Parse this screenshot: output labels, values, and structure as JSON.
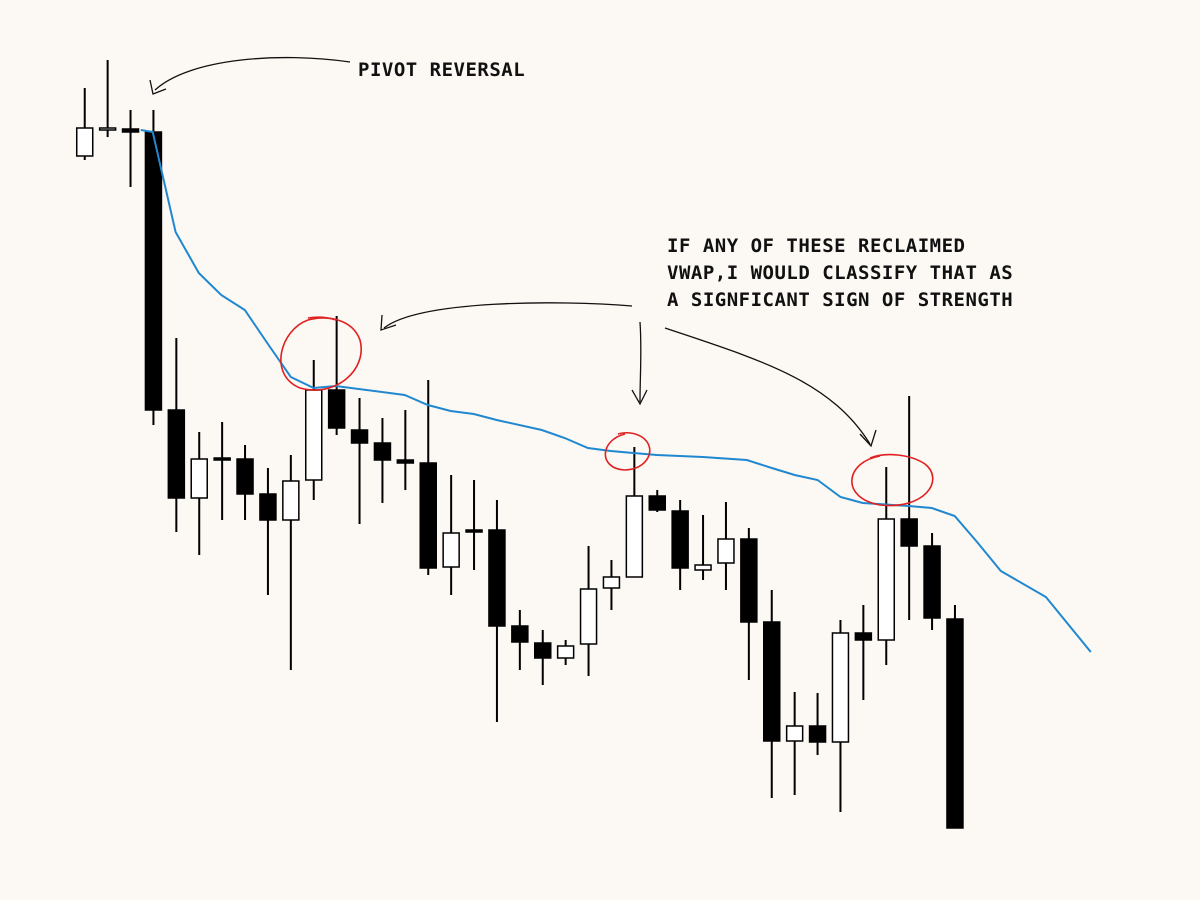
{
  "chart_data": {
    "type": "candlestick",
    "annotations": [
      "PIVOT REVERSAL",
      [
        "IF ANY OF THESE RECLAIMED",
        "VWAP,I WOULD CLASSIFY THAT AS",
        "A SIGNFICANT SIGN OF STRENGTH"
      ]
    ],
    "x": [
      0,
      1,
      2,
      3,
      4,
      5,
      6,
      7,
      8,
      9,
      10,
      11,
      12,
      13,
      14,
      15,
      16,
      17,
      18,
      19,
      20,
      21,
      22,
      23,
      24,
      25,
      26,
      27,
      28,
      29,
      30,
      31,
      32,
      33,
      34,
      35,
      36,
      37,
      38
    ],
    "open": [
      744,
      771,
      771,
      768,
      490,
      402,
      442,
      441,
      406,
      380,
      420,
      510,
      470,
      457,
      440,
      437,
      333,
      370,
      370,
      274,
      257,
      242,
      256,
      312,
      323,
      404,
      389,
      330,
      337,
      361,
      278,
      159,
      174,
      158,
      267,
      260,
      381,
      354,
      281
    ],
    "high": [
      812,
      840,
      790,
      790,
      562,
      468,
      478,
      455,
      432,
      445,
      540,
      584,
      502,
      482,
      490,
      520,
      425,
      420,
      400,
      290,
      270,
      260,
      354,
      340,
      453,
      410,
      400,
      385,
      398,
      372,
      310,
      208,
      207,
      280,
      295,
      433,
      504,
      367,
      295
    ],
    "low": [
      740,
      763,
      713,
      475,
      368,
      345,
      380,
      380,
      305,
      230,
      400,
      465,
      376,
      397,
      410,
      325,
      305,
      330,
      178,
      230,
      215,
      235,
      224,
      290,
      323,
      388,
      310,
      320,
      310,
      220,
      102,
      105,
      145,
      88,
      200,
      235,
      280,
      270,
      72
    ],
    "close": [
      772,
      772,
      768,
      490,
      402,
      441,
      441,
      406,
      380,
      419,
      510,
      472,
      457,
      440,
      437,
      332,
      367,
      368,
      274,
      258,
      242,
      254,
      311,
      323,
      404,
      390,
      332,
      335,
      361,
      278,
      159,
      174,
      158,
      267,
      260,
      381,
      354,
      282,
      72
    ],
    "up_color": "#ffffff",
    "down_color": "#000000",
    "line": {
      "color": "#1f88d0",
      "x": [
        2.45,
        2.97,
        3.97,
        4.98,
        5.96,
        6.99,
        8.03,
        9.0,
        10.0,
        10.96,
        13.97,
        14.98,
        15.98,
        16.99,
        17.99,
        19.96,
        20.96,
        21.97,
        22.97,
        24.98,
        26.99,
        28.91,
        30.0,
        31.0,
        32.0,
        33.0,
        33.97,
        35.98,
        36.99,
        37.99,
        39.0,
        40.0,
        41.97,
        43.93
      ],
      "values": [
        770,
        768,
        668,
        627,
        605,
        590,
        555,
        523,
        512,
        514,
        505,
        495,
        489,
        486,
        480,
        470,
        462,
        452,
        449,
        445,
        443,
        440,
        432,
        425,
        420,
        403,
        397,
        394,
        392,
        384,
        357,
        329,
        303,
        248
      ]
    },
    "xlim": [
      -3.7,
      48.7
    ],
    "ylim": [
      0,
      900
    ]
  }
}
